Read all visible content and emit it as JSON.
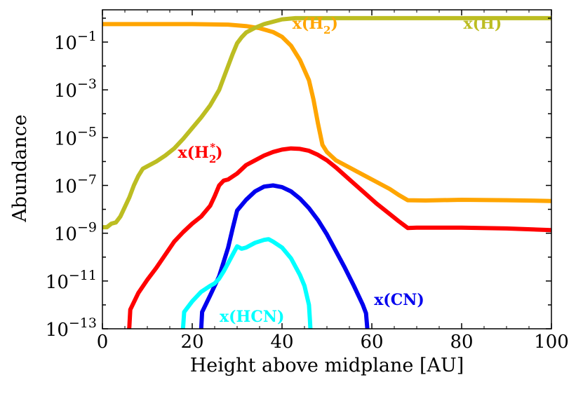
{
  "chart_data": {
    "type": "line",
    "xlabel": "Height above midplane [AU]",
    "ylabel": "Abundance",
    "xlim": [
      0,
      100
    ],
    "ylim_log10": [
      -13,
      0.35
    ],
    "yscale": "log",
    "x_ticks": [
      0,
      20,
      40,
      60,
      80,
      100
    ],
    "x_tick_labels": [
      "0",
      "20",
      "40",
      "60",
      "80",
      "100"
    ],
    "y_ticks_log10": [
      -1,
      -3,
      -5,
      -7,
      -9,
      -11,
      -13
    ],
    "y_tick_labels": [
      {
        "base": "10",
        "exp": "−1"
      },
      {
        "base": "10",
        "exp": "−3"
      },
      {
        "base": "10",
        "exp": "−5"
      },
      {
        "base": "10",
        "exp": "−7"
      },
      {
        "base": "10",
        "exp": "−9"
      },
      {
        "base": "10",
        "exp": "−11"
      },
      {
        "base": "10",
        "exp": "−13"
      }
    ],
    "grid": false,
    "series": [
      {
        "name": "x(H2)",
        "label": {
          "main": "x(H",
          "sub": "2",
          "sup": "",
          "close": ")"
        },
        "color": "#ffa500",
        "points": [
          [
            0,
            -0.25
          ],
          [
            10,
            -0.25
          ],
          [
            20,
            -0.25
          ],
          [
            28,
            -0.27
          ],
          [
            32,
            -0.33
          ],
          [
            35,
            -0.42
          ],
          [
            38,
            -0.58
          ],
          [
            40,
            -0.78
          ],
          [
            42,
            -1.15
          ],
          [
            44,
            -1.75
          ],
          [
            46,
            -2.6
          ],
          [
            47,
            -3.4
          ],
          [
            48,
            -4.4
          ],
          [
            49,
            -5.3
          ],
          [
            50,
            -5.6
          ],
          [
            52,
            -5.95
          ],
          [
            55,
            -6.25
          ],
          [
            58,
            -6.55
          ],
          [
            61,
            -6.85
          ],
          [
            64,
            -7.15
          ],
          [
            66,
            -7.4
          ],
          [
            68,
            -7.62
          ],
          [
            72,
            -7.63
          ],
          [
            80,
            -7.6
          ],
          [
            90,
            -7.62
          ],
          [
            100,
            -7.65
          ]
        ]
      },
      {
        "name": "x(H)",
        "label": {
          "main": "x(H",
          "sub": "",
          "sup": "",
          "close": ")"
        },
        "color": "#bcbd22",
        "points": [
          [
            0,
            -8.75
          ],
          [
            1,
            -8.75
          ],
          [
            2,
            -8.6
          ],
          [
            3,
            -8.55
          ],
          [
            4,
            -8.3
          ],
          [
            5,
            -7.9
          ],
          [
            6,
            -7.5
          ],
          [
            7,
            -7.0
          ],
          [
            8,
            -6.6
          ],
          [
            9,
            -6.3
          ],
          [
            10,
            -6.2
          ],
          [
            12,
            -6.0
          ],
          [
            14,
            -5.75
          ],
          [
            16,
            -5.45
          ],
          [
            18,
            -5.05
          ],
          [
            20,
            -4.6
          ],
          [
            22,
            -4.15
          ],
          [
            24,
            -3.65
          ],
          [
            26,
            -3.0
          ],
          [
            27,
            -2.5
          ],
          [
            28,
            -2.0
          ],
          [
            29,
            -1.5
          ],
          [
            30,
            -1.05
          ],
          [
            31,
            -0.8
          ],
          [
            32,
            -0.6
          ],
          [
            34,
            -0.4
          ],
          [
            36,
            -0.25
          ],
          [
            38,
            -0.15
          ],
          [
            40,
            -0.05
          ],
          [
            43,
            0.0
          ],
          [
            50,
            0.0
          ],
          [
            70,
            0.0
          ],
          [
            100,
            0.0
          ]
        ]
      },
      {
        "name": "x(H2*)",
        "label": {
          "main": "x(H",
          "sub": "2",
          "sup": "*",
          "close": ")"
        },
        "color": "#ff0000",
        "points": [
          [
            5.8,
            -13.3
          ],
          [
            6,
            -12.9
          ],
          [
            6.2,
            -12.2
          ],
          [
            8,
            -11.5
          ],
          [
            10,
            -10.95
          ],
          [
            12,
            -10.45
          ],
          [
            14,
            -9.9
          ],
          [
            16,
            -9.35
          ],
          [
            18,
            -8.95
          ],
          [
            20,
            -8.6
          ],
          [
            22,
            -8.3
          ],
          [
            24,
            -7.85
          ],
          [
            25,
            -7.45
          ],
          [
            26,
            -7.0
          ],
          [
            27,
            -6.8
          ],
          [
            28,
            -6.75
          ],
          [
            30,
            -6.5
          ],
          [
            32,
            -6.15
          ],
          [
            34,
            -5.95
          ],
          [
            36,
            -5.75
          ],
          [
            38,
            -5.6
          ],
          [
            40,
            -5.5
          ],
          [
            42,
            -5.45
          ],
          [
            44,
            -5.47
          ],
          [
            46,
            -5.55
          ],
          [
            48,
            -5.72
          ],
          [
            50,
            -5.95
          ],
          [
            52,
            -6.25
          ],
          [
            55,
            -6.75
          ],
          [
            58,
            -7.25
          ],
          [
            61,
            -7.75
          ],
          [
            64,
            -8.2
          ],
          [
            66,
            -8.5
          ],
          [
            68,
            -8.78
          ],
          [
            70,
            -8.77
          ],
          [
            80,
            -8.77
          ],
          [
            90,
            -8.8
          ],
          [
            100,
            -8.87
          ]
        ]
      },
      {
        "name": "x(CN)",
        "label": {
          "main": "x(CN",
          "sub": "",
          "sup": "",
          "close": ")"
        },
        "color": "#0000ee",
        "points": [
          [
            21.8,
            -13.3
          ],
          [
            22,
            -13.0
          ],
          [
            22.2,
            -12.3
          ],
          [
            24,
            -11.6
          ],
          [
            26,
            -10.8
          ],
          [
            28,
            -9.6
          ],
          [
            29,
            -8.8
          ],
          [
            30,
            -8.05
          ],
          [
            32,
            -7.6
          ],
          [
            34,
            -7.25
          ],
          [
            36,
            -7.05
          ],
          [
            38,
            -7.0
          ],
          [
            40,
            -7.07
          ],
          [
            42,
            -7.25
          ],
          [
            44,
            -7.55
          ],
          [
            46,
            -7.95
          ],
          [
            48,
            -8.45
          ],
          [
            50,
            -9.05
          ],
          [
            52,
            -9.75
          ],
          [
            54,
            -10.45
          ],
          [
            56,
            -11.2
          ],
          [
            58,
            -12.0
          ],
          [
            58.7,
            -12.35
          ],
          [
            59,
            -13.0
          ],
          [
            59.2,
            -13.3
          ]
        ]
      },
      {
        "name": "x(HCN)",
        "label": {
          "main": "x(HCN",
          "sub": "",
          "sup": "",
          "close": ")"
        },
        "color": "#00ffff",
        "points": [
          [
            17.8,
            -13.3
          ],
          [
            18,
            -12.85
          ],
          [
            18.2,
            -12.3
          ],
          [
            20,
            -11.85
          ],
          [
            22,
            -11.45
          ],
          [
            24,
            -11.2
          ],
          [
            25,
            -11.1
          ],
          [
            26,
            -10.9
          ],
          [
            27,
            -10.6
          ],
          [
            28,
            -10.25
          ],
          [
            29,
            -9.9
          ],
          [
            30,
            -9.55
          ],
          [
            31,
            -9.65
          ],
          [
            32,
            -9.6
          ],
          [
            34,
            -9.4
          ],
          [
            36,
            -9.28
          ],
          [
            37,
            -9.25
          ],
          [
            38,
            -9.35
          ],
          [
            40,
            -9.6
          ],
          [
            42,
            -10.05
          ],
          [
            44,
            -10.75
          ],
          [
            45,
            -11.2
          ],
          [
            46,
            -12.0
          ],
          [
            46.2,
            -12.6
          ],
          [
            46.4,
            -13.3
          ]
        ]
      }
    ],
    "annotations": [
      {
        "series": "x(H2)",
        "at": [
          42.3,
          -0.44
        ],
        "anchor": "start"
      },
      {
        "series": "x(H)",
        "at": [
          80.4,
          -0.44
        ],
        "anchor": "start"
      },
      {
        "series": "x(H2*)",
        "at": [
          16.8,
          -5.84
        ],
        "anchor": "start"
      },
      {
        "series": "x(CN)",
        "at": [
          60.5,
          -12.0
        ],
        "anchor": "start"
      },
      {
        "series": "x(HCN)",
        "at": [
          26.1,
          -12.7
        ],
        "anchor": "start"
      }
    ]
  }
}
